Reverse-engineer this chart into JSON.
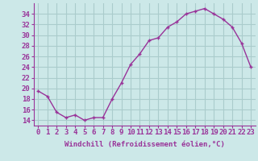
{
  "hours": [
    0,
    1,
    2,
    3,
    4,
    5,
    6,
    7,
    8,
    9,
    10,
    11,
    12,
    13,
    14,
    15,
    16,
    17,
    18,
    19,
    20,
    21,
    22,
    23
  ],
  "values": [
    19.5,
    18.5,
    15.5,
    14.5,
    15.0,
    14.0,
    14.5,
    14.5,
    18.0,
    21.0,
    24.5,
    26.5,
    29.0,
    29.5,
    31.5,
    32.5,
    34.0,
    34.5,
    35.0,
    34.0,
    33.0,
    31.5,
    28.5,
    24.0
  ],
  "line_color": "#993399",
  "marker": "+",
  "bg_color": "#cce8e8",
  "grid_color": "#aacccc",
  "xlabel": "Windchill (Refroidissement éolien,°C)",
  "ylim": [
    13,
    36
  ],
  "yticks": [
    14,
    16,
    18,
    20,
    22,
    24,
    26,
    28,
    30,
    32,
    34
  ],
  "xlim": [
    -0.5,
    23.5
  ],
  "tick_color": "#993399",
  "label_color": "#993399",
  "xlabel_fontsize": 6.5,
  "tick_fontsize": 6.5
}
